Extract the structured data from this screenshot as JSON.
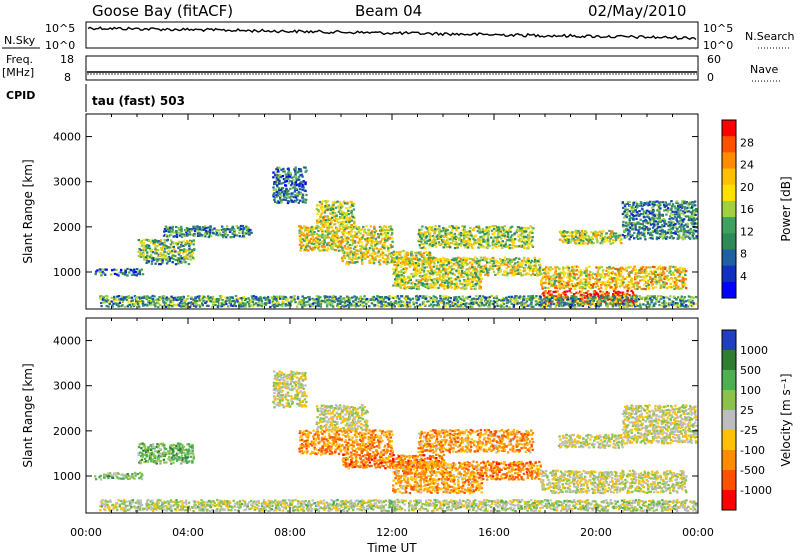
{
  "header": {
    "station": "Goose Bay (fitACF)",
    "beam": "Beam 04",
    "date": "02/May/2010"
  },
  "top_panels": {
    "nsky_label": "N.Sky",
    "nsearch_label": "N.Search",
    "freq_label_1": "Freq.",
    "freq_label_2": "[MHz]",
    "cpid_label": "CPID",
    "nave_label": "Nave",
    "left_ticks_row1": [
      "10^5",
      "10^0"
    ],
    "right_ticks_row1": [
      "10^5",
      "10^0"
    ],
    "left_ticks_row2": [
      "18",
      "8"
    ],
    "right_ticks_row2": [
      "60",
      "0"
    ],
    "cpid_text": "tau (fast) 503"
  },
  "chart_data": [
    {
      "type": "heatmap",
      "panel": "power",
      "ylabel": "Slant Range [km]",
      "colorbar_label": "Power [dB]",
      "colorbar_ticks": [
        "28",
        "24",
        "20",
        "16",
        "12",
        "8",
        "4"
      ],
      "colorbar_colors": [
        "#ff0000",
        "#ff5000",
        "#ff8c00",
        "#ffc000",
        "#ffe000",
        "#a0d040",
        "#40a060",
        "#2e8b57",
        "#2060a0",
        "#1030c0",
        "#0000ff"
      ],
      "ylim": [
        180,
        4500
      ],
      "y_ticks": [
        1000,
        2000,
        3000,
        4000
      ],
      "x_ticks": [
        "00:00",
        "04:00",
        "08:00",
        "12:00",
        "16:00",
        "20:00",
        "00:00"
      ],
      "regions": [
        {
          "t0": 0.3,
          "t1": 2.2,
          "r0": 900,
          "r1": 1050,
          "level": 0.25
        },
        {
          "t0": 2.0,
          "t1": 4.2,
          "r0": 1250,
          "r1": 1700,
          "level": 0.45
        },
        {
          "t0": 2.3,
          "t1": 4.0,
          "r0": 1150,
          "r1": 1300,
          "level": 0.3
        },
        {
          "t0": 3.0,
          "t1": 6.5,
          "r0": 1750,
          "r1": 2000,
          "level": 0.3
        },
        {
          "t0": 8.3,
          "t1": 12.0,
          "r0": 1450,
          "r1": 2000,
          "level": 0.6
        },
        {
          "t0": 9.0,
          "t1": 10.5,
          "r0": 2000,
          "r1": 2550,
          "level": 0.55
        },
        {
          "t0": 10.0,
          "t1": 13.5,
          "r0": 1150,
          "r1": 1450,
          "level": 0.6
        },
        {
          "t0": 12.0,
          "t1": 15.5,
          "r0": 600,
          "r1": 1300,
          "level": 0.55
        },
        {
          "t0": 13.0,
          "t1": 17.5,
          "r0": 1500,
          "r1": 2000,
          "level": 0.5
        },
        {
          "t0": 15.5,
          "t1": 17.8,
          "r0": 900,
          "r1": 1300,
          "level": 0.55
        },
        {
          "t0": 17.8,
          "t1": 23.5,
          "r0": 600,
          "r1": 1100,
          "level": 0.65
        },
        {
          "t0": 17.8,
          "t1": 21.6,
          "r0": 250,
          "r1": 560,
          "level": 0.95
        },
        {
          "t0": 18.5,
          "t1": 21.0,
          "r0": 1600,
          "r1": 1900,
          "level": 0.55
        },
        {
          "t0": 21.0,
          "t1": 23.9,
          "r0": 1700,
          "r1": 2550,
          "level": 0.3
        },
        {
          "t0": 0.5,
          "t1": 23.9,
          "r0": 200,
          "r1": 450,
          "level": 0.35
        },
        {
          "t0": 7.3,
          "t1": 8.6,
          "r0": 2500,
          "r1": 3300,
          "level": 0.25
        }
      ]
    },
    {
      "type": "heatmap",
      "panel": "velocity",
      "ylabel": "Slant Range [km]",
      "colorbar_label": "Velocity [m s⁻¹]",
      "colorbar_ticks": [
        "1000",
        "500",
        "100",
        "25",
        "-25",
        "-100",
        "-500",
        "-1000"
      ],
      "colorbar_colors": [
        "#1f3fbf",
        "#2e7d32",
        "#4caf50",
        "#8bc34a",
        "#bdbdbd",
        "#ffc107",
        "#ff8c00",
        "#ff5000",
        "#ff0000"
      ],
      "ylim": [
        180,
        4500
      ],
      "y_ticks": [
        1000,
        2000,
        3000,
        4000
      ],
      "x_ticks": [
        "00:00",
        "04:00",
        "08:00",
        "12:00",
        "16:00",
        "20:00",
        "00:00"
      ],
      "xlabel": "Time UT",
      "regions": [
        {
          "t0": 0.3,
          "t1": 2.2,
          "r0": 900,
          "r1": 1050,
          "level": 0.35
        },
        {
          "t0": 2.0,
          "t1": 4.2,
          "r0": 1250,
          "r1": 1700,
          "level": 0.3
        },
        {
          "t0": 8.3,
          "t1": 12.0,
          "r0": 1450,
          "r1": 2000,
          "level": 0.75
        },
        {
          "t0": 9.0,
          "t1": 11.0,
          "r0": 2000,
          "r1": 2550,
          "level": 0.5
        },
        {
          "t0": 10.0,
          "t1": 14.0,
          "r0": 1150,
          "r1": 1450,
          "level": 0.8
        },
        {
          "t0": 12.0,
          "t1": 15.5,
          "r0": 600,
          "r1": 1300,
          "level": 0.7
        },
        {
          "t0": 13.0,
          "t1": 17.5,
          "r0": 1500,
          "r1": 2000,
          "level": 0.72
        },
        {
          "t0": 15.5,
          "t1": 17.8,
          "r0": 900,
          "r1": 1300,
          "level": 0.78
        },
        {
          "t0": 17.8,
          "t1": 23.5,
          "r0": 600,
          "r1": 1100,
          "level": 0.5
        },
        {
          "t0": 18.5,
          "t1": 21.0,
          "r0": 1600,
          "r1": 1900,
          "level": 0.5
        },
        {
          "t0": 21.0,
          "t1": 23.9,
          "r0": 1700,
          "r1": 2550,
          "level": 0.5
        },
        {
          "t0": 0.5,
          "t1": 23.9,
          "r0": 200,
          "r1": 450,
          "level": 0.45
        },
        {
          "t0": 7.3,
          "t1": 8.6,
          "r0": 2500,
          "r1": 3300,
          "level": 0.5
        }
      ]
    }
  ]
}
